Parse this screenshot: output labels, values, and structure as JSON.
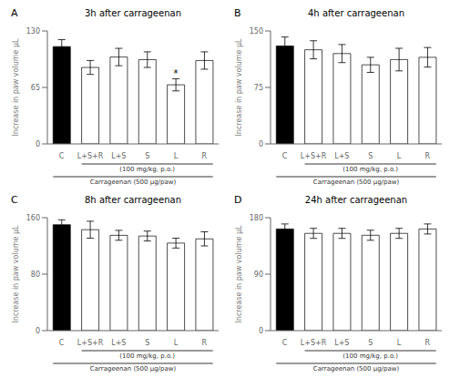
{
  "chart_data": [
    {
      "type": "bar",
      "title": "3h after carrageenan",
      "ylabel": "Increase in paw volume μL",
      "categories": [
        "C",
        "L+S+R",
        "L+S",
        "S",
        "L",
        "R"
      ],
      "values": [
        112,
        88,
        100,
        97,
        68,
        96
      ],
      "errors": [
        8,
        8,
        10,
        9,
        7,
        10
      ],
      "colors": [
        "black",
        "white",
        "white",
        "white",
        "white",
        "white"
      ],
      "ylim": [
        0,
        130
      ],
      "yticks": [
        0,
        65,
        130
      ],
      "annotations": [
        {
          "text": "A"
        },
        {
          "text": "*",
          "category": "L"
        },
        {
          "text": "(100 mg/kg, p.o.)",
          "from": "L+S+R",
          "to": "R"
        },
        {
          "text": "Carrageenan (500 μg/paw)",
          "from": "C",
          "to": "R"
        }
      ]
    },
    {
      "type": "bar",
      "title": "4h after carrageenan",
      "ylabel": "Increase in paw volume μL",
      "categories": [
        "C",
        "L+S+R",
        "L+S",
        "S",
        "L",
        "R"
      ],
      "values": [
        130,
        125,
        120,
        105,
        112,
        115
      ],
      "errors": [
        12,
        12,
        12,
        10,
        15,
        13
      ],
      "colors": [
        "black",
        "white",
        "white",
        "white",
        "white",
        "white"
      ],
      "ylim": [
        0,
        150
      ],
      "yticks": [
        0,
        75,
        150
      ],
      "annotations": [
        {
          "text": "B"
        },
        {
          "text": "(100 mg/kg, p.o.)",
          "from": "L+S+R",
          "to": "R"
        },
        {
          "text": "Carrageenan (500 μg/paw)",
          "from": "C",
          "to": "R"
        }
      ]
    },
    {
      "type": "bar",
      "title": "8h after carrageenan",
      "ylabel": "Increase in paw volume μL",
      "categories": [
        "C",
        "L+S+R",
        "L+S",
        "S",
        "L",
        "R"
      ],
      "values": [
        150,
        143,
        135,
        134,
        124,
        130
      ],
      "errors": [
        7,
        12,
        7,
        7,
        7,
        10
      ],
      "colors": [
        "black",
        "white",
        "white",
        "white",
        "white",
        "white"
      ],
      "ylim": [
        0,
        160
      ],
      "yticks": [
        0,
        80,
        160
      ],
      "annotations": [
        {
          "text": "C"
        },
        {
          "text": "(100 mg/kg, p.o.)",
          "from": "L+S+R",
          "to": "R"
        },
        {
          "text": "Carrageenan (500 μg/paw)",
          "from": "C",
          "to": "R"
        }
      ]
    },
    {
      "type": "bar",
      "title": "24h after carrageenan",
      "ylabel": "Increase in paw volume μL",
      "categories": [
        "C",
        "L+S+R",
        "L+S",
        "S",
        "L",
        "R"
      ],
      "values": [
        162,
        155,
        155,
        152,
        155,
        162
      ],
      "errors": [
        8,
        8,
        8,
        8,
        8,
        8
      ],
      "colors": [
        "black",
        "white",
        "white",
        "white",
        "white",
        "white"
      ],
      "ylim": [
        0,
        180
      ],
      "yticks": [
        0,
        90,
        180
      ],
      "annotations": [
        {
          "text": "D"
        },
        {
          "text": "(100 mg/kg, p.o.)",
          "from": "L+S+R",
          "to": "R"
        },
        {
          "text": "Carrageenan (500 μg/paw)",
          "from": "C",
          "to": "R"
        }
      ]
    }
  ]
}
